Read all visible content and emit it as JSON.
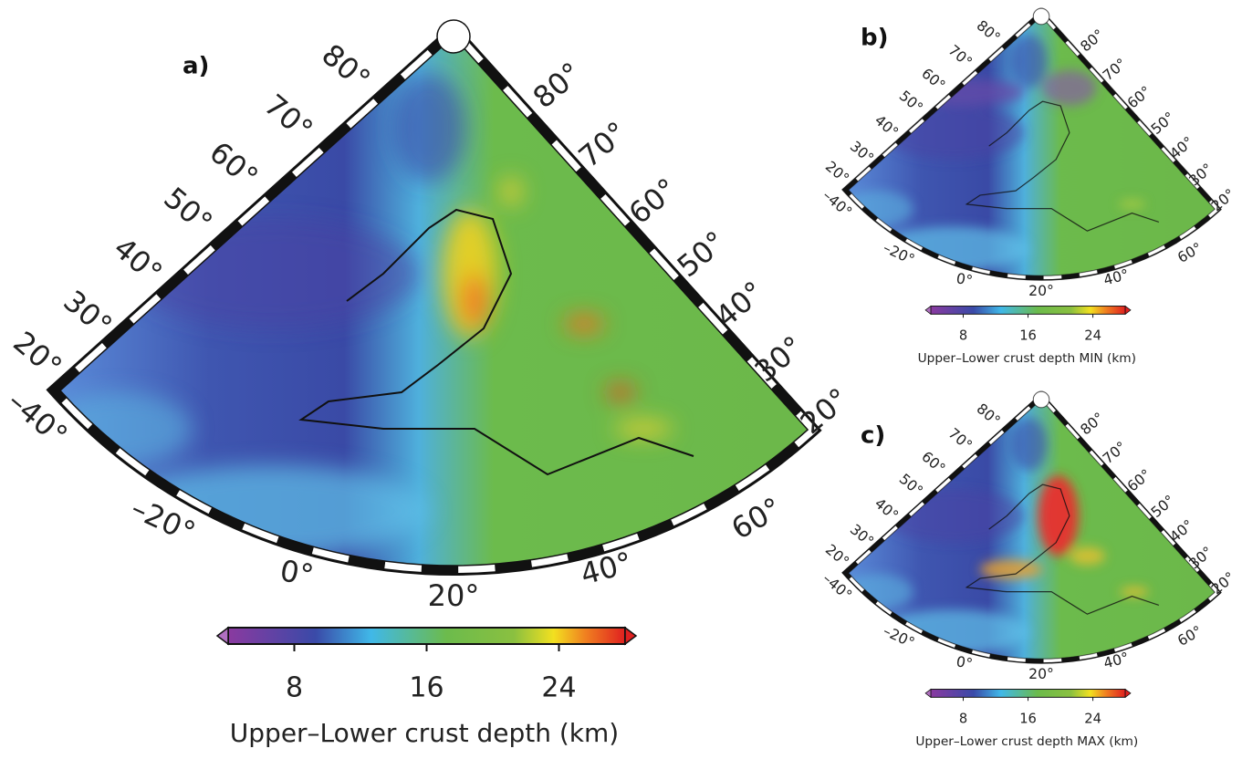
{
  "panels": [
    {
      "label": "a)",
      "lat_left": [
        "80°",
        "70°",
        "60°",
        "50°",
        "40°",
        "30°",
        "20°"
      ],
      "lat_right": [
        "80°",
        "70°",
        "60°",
        "50°",
        "40°",
        "30°",
        "20°"
      ],
      "lon": [
        "–40°",
        "–20°",
        "0°",
        "20°",
        "40°",
        "60°"
      ],
      "colorbar": {
        "clim": [
          4,
          28
        ],
        "ticks": [
          8,
          16,
          24
        ],
        "label": "Upper–Lower crust depth (km)"
      }
    },
    {
      "label": "b)",
      "lat_left": [
        "80°",
        "70°",
        "60°",
        "50°",
        "40°",
        "30°",
        "20°"
      ],
      "lat_right": [
        "80°",
        "70°",
        "60°",
        "50°",
        "40°",
        "30°",
        "20°"
      ],
      "lon": [
        "–40°",
        "–20°",
        "0°",
        "20°",
        "40°",
        "60°"
      ],
      "colorbar": {
        "clim": [
          4,
          28
        ],
        "ticks": [
          8,
          16,
          24
        ],
        "label": "Upper–Lower crust depth MIN (km)"
      }
    },
    {
      "label": "c)",
      "lat_left": [
        "80°",
        "70°",
        "60°",
        "50°",
        "40°",
        "30°",
        "20°"
      ],
      "lat_right": [
        "80°",
        "70°",
        "60°",
        "50°",
        "40°",
        "30°",
        "20°"
      ],
      "lon": [
        "–40°",
        "–20°",
        "0°",
        "20°",
        "40°",
        "60°"
      ],
      "colorbar": {
        "clim": [
          4,
          28
        ],
        "ticks": [
          8,
          16,
          24
        ],
        "label": "Upper–Lower crust depth MAX (km)"
      }
    }
  ]
}
